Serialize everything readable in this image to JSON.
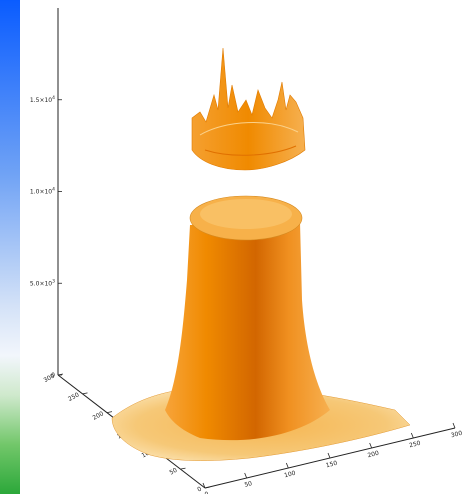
{
  "chart_data": {
    "type": "surface",
    "title": "",
    "xlabel": "",
    "ylabel": "",
    "zlabel": "",
    "z_ticks": [
      {
        "value": 0,
        "mantissa": "0",
        "exp": ""
      },
      {
        "value": 5000,
        "mantissa": "5.0×10",
        "exp": "3"
      },
      {
        "value": 10000,
        "mantissa": "1.0×10",
        "exp": "4"
      },
      {
        "value": 15000,
        "mantissa": "1.5×10",
        "exp": "4"
      }
    ],
    "zlim": [
      0,
      20000
    ],
    "x_ticks": [
      0,
      50,
      100,
      150,
      200,
      250,
      300
    ],
    "xlim": [
      0,
      300
    ],
    "y_ticks": [
      0,
      50,
      100,
      150,
      200,
      250,
      300
    ],
    "ylim": [
      0,
      300
    ],
    "surface_features": {
      "plateau_height": 10000,
      "floating_ring_height": 14000,
      "peak_height": 17500
    },
    "colors": {
      "surface_base": "#f08a00",
      "surface_mid": "#f5a020",
      "surface_top": "#f8c060",
      "colorbar_top": "#1060ff",
      "colorbar_mid": "#e8f0ff",
      "colorbar_bottom": "#30b040"
    }
  }
}
